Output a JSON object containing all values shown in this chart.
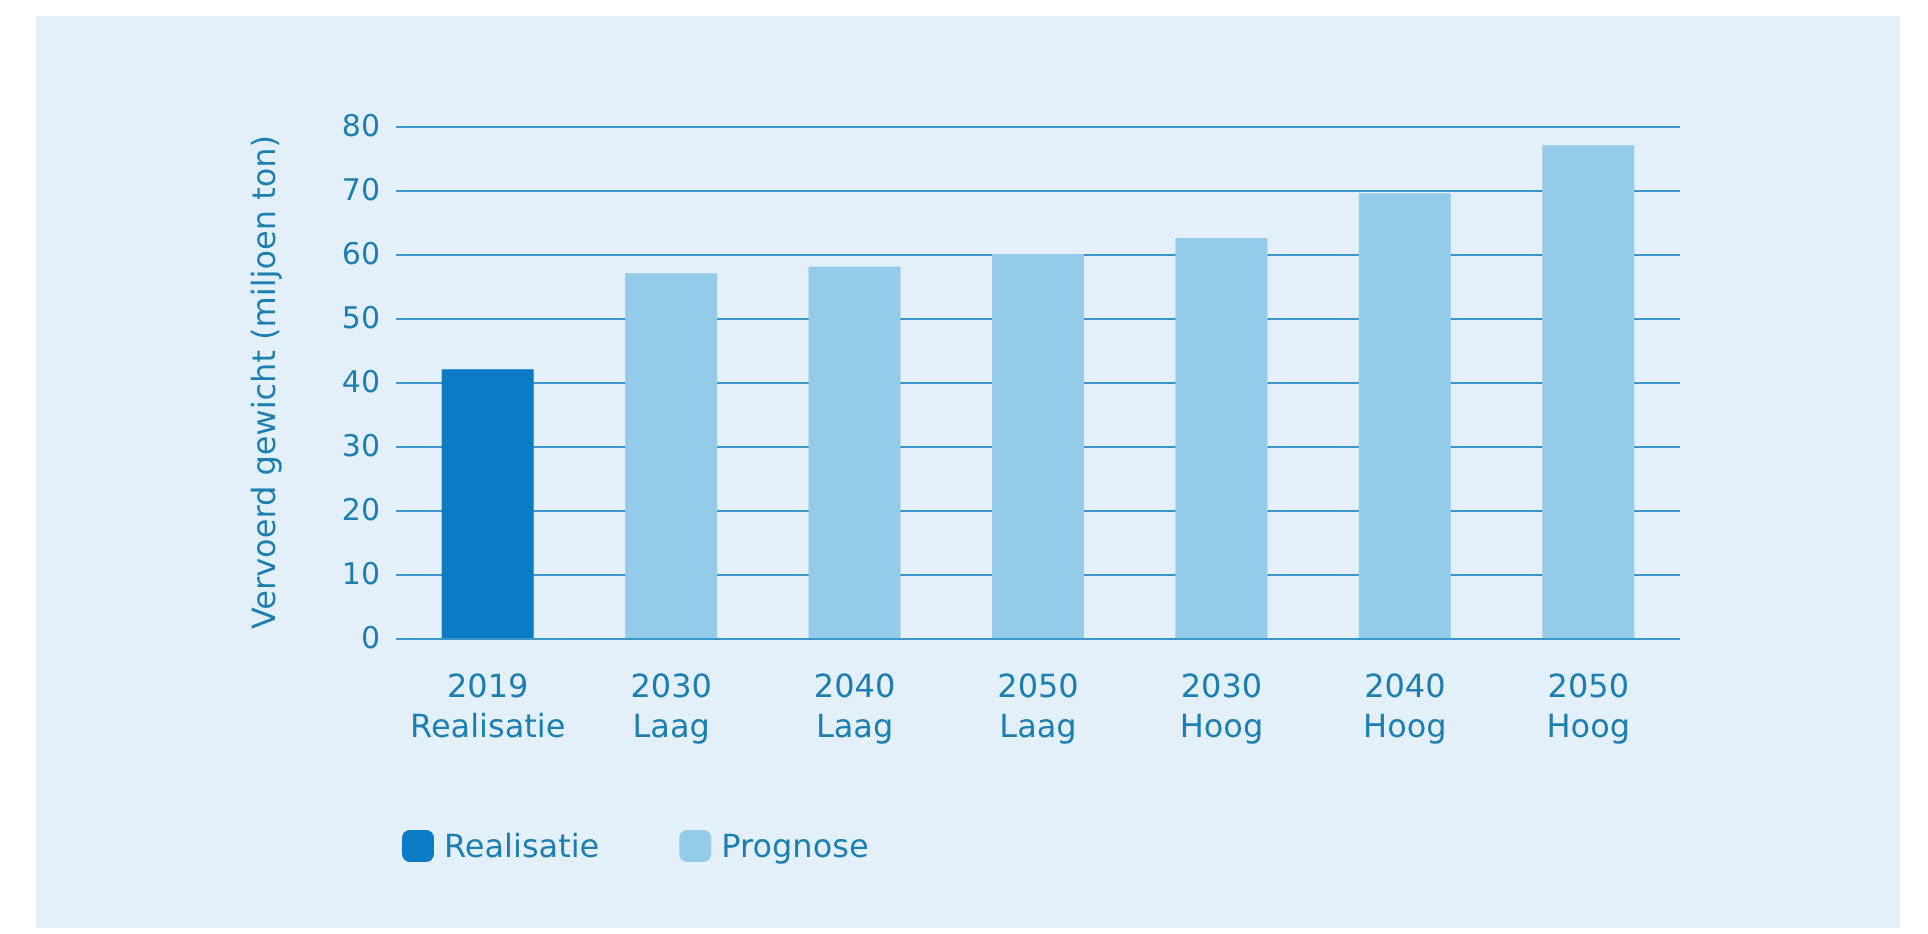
{
  "chart_data": {
    "type": "bar",
    "ylabel": "Vervoerd gewicht (miljoen ton)",
    "categories": [
      "2019 Realisatie",
      "2030 Laag",
      "2040 Laag",
      "2050 Laag",
      "2030 Hoog",
      "2040 Hoog",
      "2050 Hoog"
    ],
    "series": [
      {
        "name": "Realisatie",
        "color": "#0a7bc4",
        "values": [
          42,
          null,
          null,
          null,
          null,
          null,
          null
        ]
      },
      {
        "name": "Prognose",
        "color": "#93cbe8",
        "values": [
          null,
          57,
          58,
          60,
          62.5,
          69.5,
          77
        ]
      }
    ],
    "ylim": [
      0,
      80
    ],
    "yticks": [
      0,
      10,
      20,
      30,
      40,
      50,
      60,
      70,
      80
    ],
    "grid": "y",
    "legend": "bottom left"
  }
}
